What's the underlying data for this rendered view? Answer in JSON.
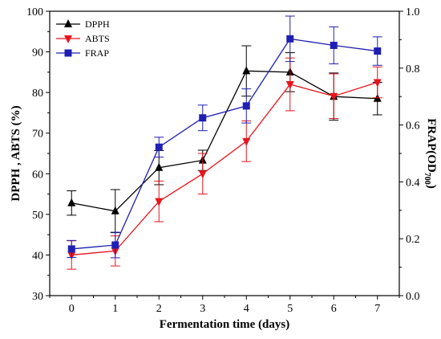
{
  "chart_data": {
    "type": "line",
    "xlabel": "Fermentation time (days)",
    "ylabel_left": "DPPH , ABTS (%)",
    "ylabel_right": {
      "main": "FRAP(OD",
      "sub": "700",
      "close": ")"
    },
    "x": [
      0,
      1,
      2,
      3,
      4,
      5,
      6,
      7
    ],
    "x_ticks": [
      "0",
      "1",
      "2",
      "3",
      "4",
      "5",
      "6",
      "7"
    ],
    "xlim": [
      -0.5,
      7.5
    ],
    "ylim_left": [
      30,
      100
    ],
    "y_ticks_left": [
      "30",
      "40",
      "50",
      "60",
      "70",
      "80",
      "90",
      "100"
    ],
    "ylim_right": [
      0,
      1
    ],
    "y_ticks_right": [
      "0.0",
      "0.2",
      "0.4",
      "0.6",
      "0.8",
      "1.0"
    ],
    "legend_position": "top-left",
    "series": [
      {
        "name": "DPPH",
        "axis": "left",
        "marker": "triangle-up",
        "color": "#000000",
        "values": [
          52.8,
          50.8,
          61.5,
          63.3,
          85.3,
          85.0,
          79.0,
          78.5
        ],
        "errors": [
          3.0,
          5.3,
          4.2,
          2.5,
          6.2,
          4.8,
          5.8,
          4.0
        ]
      },
      {
        "name": "ABTS",
        "axis": "left",
        "marker": "triangle-down",
        "color": "#e8141c",
        "values": [
          40.0,
          41.0,
          53.2,
          60.0,
          68.0,
          82.0,
          79.1,
          82.5
        ],
        "errors": [
          3.5,
          3.7,
          5.0,
          5.0,
          5.0,
          6.5,
          5.5,
          3.8
        ]
      },
      {
        "name": "FRAP",
        "axis": "right",
        "marker": "square",
        "color": "#1f1fb4",
        "values": [
          0.164,
          0.178,
          0.522,
          0.625,
          0.667,
          0.903,
          0.88,
          0.86
        ],
        "errors": [
          0.03,
          0.045,
          0.035,
          0.045,
          0.06,
          0.08,
          0.065,
          0.05
        ]
      }
    ]
  }
}
